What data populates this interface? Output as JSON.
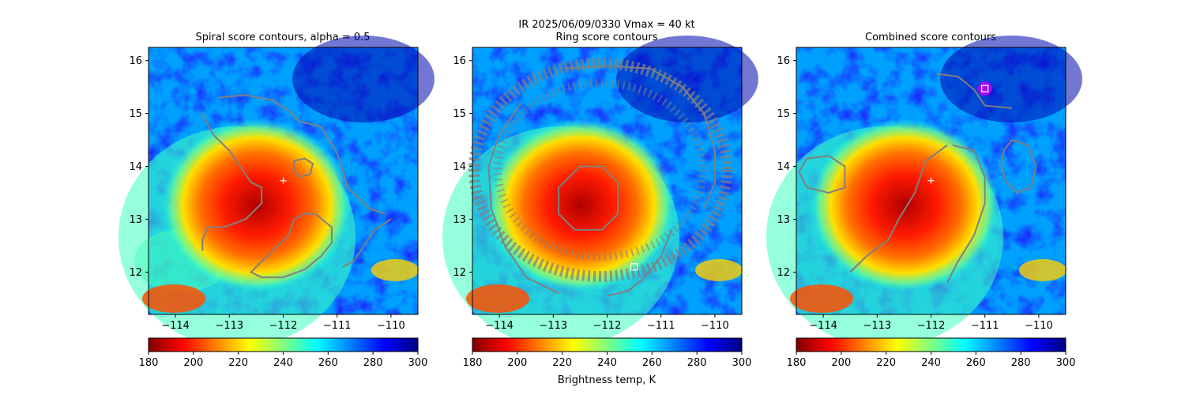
{
  "figure": {
    "suptitle_line1": "IR  2025/06/09/0330    Vmax = 40 kt",
    "colorbar_label": "Brightness temp, K"
  },
  "colormap": {
    "name": "jet_r",
    "vmin": 180,
    "vmax": 300,
    "stops": [
      "#800000",
      "#ff0000",
      "#ff8000",
      "#ffff00",
      "#80ff80",
      "#00ffff",
      "#0080ff",
      "#0000ff",
      "#000080"
    ]
  },
  "contour_color": "#808080",
  "center_marker_color": "#ffffff",
  "chart_data": [
    {
      "type": "heatmap",
      "title": "Spiral score contours, alpha =  0.5",
      "xlim": [
        -114.5,
        -109.5
      ],
      "ylim": [
        11.2,
        16.25
      ],
      "xticks": [
        "−114",
        "−113",
        "−112",
        "−111",
        "−110"
      ],
      "xtick_values": [
        -114,
        -113,
        -112,
        -111,
        -110
      ],
      "yticks": [
        "12",
        "13",
        "14",
        "15",
        "16"
      ],
      "ytick_values": [
        12,
        13,
        14,
        15,
        16
      ],
      "colorbar_ticks": [
        "180",
        "200",
        "220",
        "240",
        "260",
        "280",
        "300"
      ],
      "colorbar_tick_values": [
        180,
        200,
        220,
        240,
        260,
        280,
        300
      ],
      "center_marker": {
        "shape": "plus",
        "x": -112.0,
        "y": 13.73
      },
      "contours": [
        [
          [
            -113.2,
            15.3
          ],
          [
            -112.7,
            15.35
          ],
          [
            -112.2,
            15.25
          ],
          [
            -111.9,
            15.05
          ],
          [
            -111.7,
            14.85
          ],
          [
            -111.3,
            14.75
          ],
          [
            -111.0,
            14.25
          ],
          [
            -110.8,
            13.6
          ],
          [
            -110.4,
            13.2
          ],
          [
            -110.1,
            13.1
          ]
        ],
        [
          [
            -113.5,
            15.0
          ],
          [
            -113.3,
            14.6
          ],
          [
            -113.0,
            14.3
          ],
          [
            -112.8,
            14.0
          ],
          [
            -112.6,
            13.7
          ],
          [
            -112.4,
            13.6
          ],
          [
            -112.4,
            13.3
          ],
          [
            -112.7,
            13.0
          ],
          [
            -113.1,
            12.85
          ],
          [
            -113.4,
            12.85
          ],
          [
            -113.5,
            12.6
          ],
          [
            -113.5,
            12.4
          ]
        ],
        [
          [
            -111.8,
            14.1
          ],
          [
            -111.6,
            14.15
          ],
          [
            -111.45,
            14.05
          ],
          [
            -111.5,
            13.85
          ],
          [
            -111.7,
            13.8
          ],
          [
            -111.8,
            13.95
          ],
          [
            -111.8,
            14.1
          ]
        ],
        [
          [
            -111.4,
            13.1
          ],
          [
            -111.1,
            12.85
          ],
          [
            -111.1,
            12.55
          ],
          [
            -111.3,
            12.3
          ],
          [
            -111.6,
            12.05
          ],
          [
            -112.0,
            11.9
          ],
          [
            -112.4,
            11.9
          ],
          [
            -112.6,
            12.0
          ],
          [
            -112.3,
            12.3
          ],
          [
            -111.9,
            12.7
          ],
          [
            -111.8,
            13.0
          ],
          [
            -111.6,
            13.1
          ],
          [
            -111.4,
            13.1
          ]
        ],
        [
          [
            -110.0,
            13.0
          ],
          [
            -110.3,
            12.8
          ],
          [
            -110.5,
            12.5
          ],
          [
            -110.7,
            12.2
          ],
          [
            -110.9,
            12.1
          ]
        ]
      ]
    },
    {
      "type": "heatmap",
      "title": "Ring score contours",
      "xlim": [
        -114.5,
        -109.5
      ],
      "ylim": [
        11.2,
        16.25
      ],
      "xticks": [
        "−114",
        "−113",
        "−112",
        "−111",
        "−110"
      ],
      "xtick_values": [
        -114,
        -113,
        -112,
        -111,
        -110
      ],
      "yticks": [
        "12",
        "13",
        "14",
        "15",
        "16"
      ],
      "ytick_values": [
        12,
        13,
        14,
        15,
        16
      ],
      "colorbar_ticks": [
        "180",
        "200",
        "220",
        "240",
        "260",
        "280",
        "300"
      ],
      "colorbar_tick_values": [
        180,
        200,
        220,
        240,
        260,
        280,
        300
      ],
      "center_marker": {
        "shape": "square",
        "x": -111.5,
        "y": 12.1
      },
      "contours": [
        [
          [
            -112.8,
            15.85
          ],
          [
            -112.0,
            15.9
          ],
          [
            -111.2,
            15.85
          ],
          [
            -110.6,
            15.5
          ],
          [
            -110.2,
            15.0
          ],
          [
            -110.0,
            14.3
          ],
          [
            -110.0,
            13.7
          ],
          [
            -110.2,
            13.2
          ]
        ],
        [
          [
            -113.6,
            15.2
          ],
          [
            -114.0,
            14.6
          ],
          [
            -114.2,
            14.0
          ],
          [
            -114.15,
            13.2
          ],
          [
            -113.9,
            12.5
          ],
          [
            -113.5,
            11.9
          ],
          [
            -112.9,
            11.6
          ]
        ],
        [
          [
            -112.5,
            14.0
          ],
          [
            -112.1,
            14.0
          ],
          [
            -111.8,
            13.7
          ],
          [
            -111.8,
            13.1
          ],
          [
            -112.1,
            12.8
          ],
          [
            -112.6,
            12.8
          ],
          [
            -112.9,
            13.1
          ],
          [
            -112.9,
            13.6
          ],
          [
            -112.5,
            14.0
          ]
        ],
        [
          [
            -112.0,
            11.55
          ],
          [
            -111.6,
            11.65
          ],
          [
            -111.3,
            11.9
          ],
          [
            -111.0,
            12.3
          ],
          [
            -110.8,
            12.8
          ]
        ]
      ]
    },
    {
      "type": "heatmap",
      "title": "Combined score contours",
      "xlim": [
        -114.5,
        -109.5
      ],
      "ylim": [
        11.2,
        16.25
      ],
      "xticks": [
        "−114",
        "−113",
        "−112",
        "−111",
        "−110"
      ],
      "xtick_values": [
        -114,
        -113,
        -112,
        -111,
        -110
      ],
      "yticks": [
        "12",
        "13",
        "14",
        "15",
        "16"
      ],
      "ytick_values": [
        12,
        13,
        14,
        15,
        16
      ],
      "colorbar_ticks": [
        "180",
        "200",
        "220",
        "240",
        "260",
        "280",
        "300"
      ],
      "colorbar_tick_values": [
        180,
        200,
        220,
        240,
        260,
        280,
        300
      ],
      "center_marker": {
        "shape": "plus",
        "x": -112.0,
        "y": 13.73
      },
      "extra_marker": {
        "shape": "square",
        "x": -111.0,
        "y": 15.47
      },
      "contours": [
        [
          [
            -111.9,
            15.75
          ],
          [
            -111.5,
            15.7
          ],
          [
            -111.2,
            15.45
          ],
          [
            -111.0,
            15.15
          ],
          [
            -110.5,
            15.1
          ]
        ],
        [
          [
            -113.9,
            14.2
          ],
          [
            -113.6,
            14.0
          ],
          [
            -113.6,
            13.6
          ],
          [
            -113.9,
            13.5
          ],
          [
            -114.3,
            13.6
          ],
          [
            -114.45,
            13.9
          ],
          [
            -114.3,
            14.15
          ],
          [
            -113.9,
            14.2
          ]
        ],
        [
          [
            -111.6,
            14.4
          ],
          [
            -111.2,
            14.3
          ],
          [
            -111.0,
            13.8
          ],
          [
            -111.0,
            13.3
          ],
          [
            -111.2,
            12.7
          ],
          [
            -111.5,
            12.2
          ],
          [
            -111.7,
            11.8
          ]
        ],
        [
          [
            -111.7,
            14.4
          ],
          [
            -112.1,
            14.1
          ],
          [
            -112.3,
            13.5
          ],
          [
            -112.6,
            13.0
          ],
          [
            -112.8,
            12.6
          ],
          [
            -113.2,
            12.3
          ],
          [
            -113.5,
            12.0
          ]
        ],
        [
          [
            -110.5,
            14.5
          ],
          [
            -110.2,
            14.4
          ],
          [
            -110.05,
            14.0
          ],
          [
            -110.15,
            13.6
          ],
          [
            -110.4,
            13.5
          ],
          [
            -110.6,
            13.7
          ],
          [
            -110.7,
            14.0
          ],
          [
            -110.65,
            14.3
          ],
          [
            -110.5,
            14.5
          ]
        ]
      ]
    }
  ]
}
